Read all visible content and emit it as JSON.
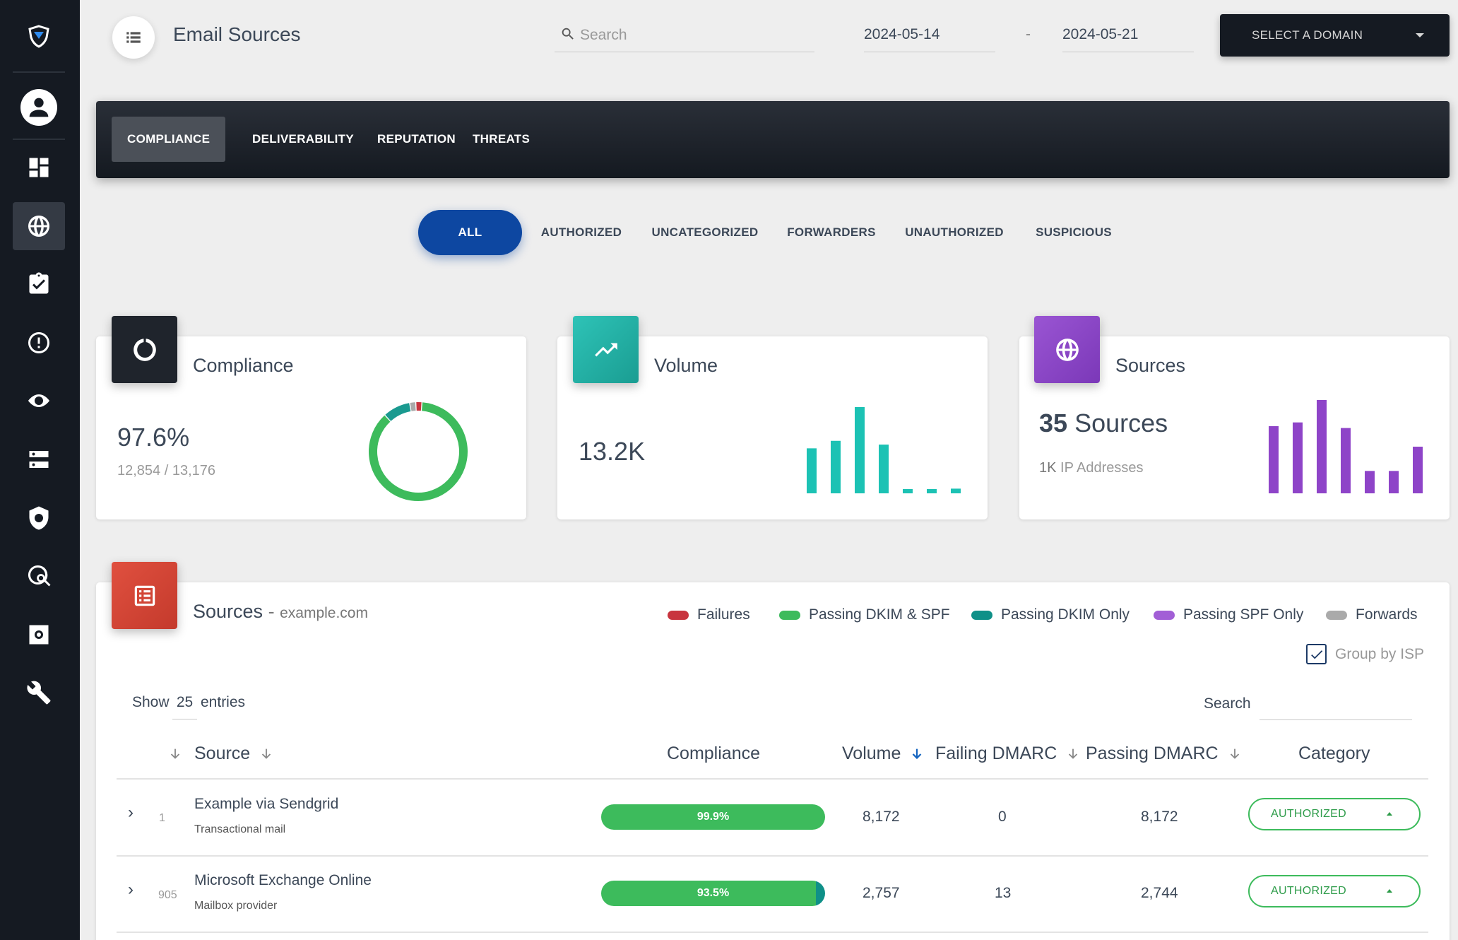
{
  "header": {
    "title": "Email Sources",
    "search_placeholder": "Search",
    "date_from": "2024-05-14",
    "date_sep": "-",
    "date_to": "2024-05-21",
    "domain_select": "SELECT A DOMAIN"
  },
  "tabs": [
    "COMPLIANCE",
    "DELIVERABILITY",
    "REPUTATION",
    "THREATS"
  ],
  "active_tab": "COMPLIANCE",
  "filters": [
    "ALL",
    "AUTHORIZED",
    "UNCATEGORIZED",
    "FORWARDERS",
    "UNAUTHORIZED",
    "SUSPICIOUS"
  ],
  "active_filter": "ALL",
  "sidebar": {
    "items": [
      "logo",
      "profile",
      "dashboard",
      "globe",
      "clipboard-check",
      "alert",
      "lock-eye",
      "servers",
      "shield-search",
      "globe-search",
      "settings",
      "wrench"
    ],
    "active": "globe"
  },
  "cards": {
    "compliance": {
      "title": "Compliance",
      "value": "97.6%",
      "sub": "12,854 / 13,176",
      "icon": "donut-icon",
      "color": "#1f242c"
    },
    "volume": {
      "title": "Volume",
      "value": "13.2K",
      "icon": "trending-up-icon",
      "color": "#26b3a8"
    },
    "sources": {
      "title": "Sources",
      "value_num": "35",
      "value_label": "Sources",
      "sub_num": "1K",
      "sub_label": "IP Addresses",
      "icon": "globe-icon",
      "color": "#8e44c8"
    }
  },
  "chart_data": [
    {
      "type": "pie",
      "labels": [
        "Passing DKIM & SPF",
        "Passing DKIM Only",
        "Forwards",
        "Failures"
      ],
      "values": [
        87,
        9,
        2,
        2
      ],
      "colors": [
        "#3dbb5c",
        "#1a9a90",
        "#aaaaaa",
        "#c8353f"
      ]
    },
    {
      "type": "bar",
      "categories": [
        "1",
        "2",
        "3",
        "4",
        "5",
        "6",
        "7"
      ],
      "values": [
        48,
        56,
        92,
        52,
        4,
        2,
        5
      ],
      "color": "#1cc2b4"
    },
    {
      "type": "bar",
      "categories": [
        "1",
        "2",
        "3",
        "4",
        "5",
        "6",
        "7"
      ],
      "values": [
        72,
        76,
        100,
        70,
        24,
        24,
        50
      ],
      "color": "#8e44c8"
    }
  ],
  "table": {
    "title": "Sources",
    "domain": "example.com",
    "legend": [
      {
        "label": "Failures",
        "color": "#c8353f"
      },
      {
        "label": "Passing DKIM & SPF",
        "color": "#3dbb5c"
      },
      {
        "label": "Passing DKIM Only",
        "color": "#0f9088"
      },
      {
        "label": "Passing SPF Only",
        "color": "#a25fd6"
      },
      {
        "label": "Forwards",
        "color": "#aaaaaa"
      }
    ],
    "group_by_isp": "Group by ISP",
    "group_by_isp_checked": true,
    "show_label": "Show",
    "page_size": "25",
    "entries_label": "entries",
    "search_label": "Search",
    "columns": [
      "Source",
      "Compliance",
      "Volume",
      "Failing DMARC",
      "Passing DMARC",
      "Category"
    ],
    "rows": [
      {
        "rank": "1",
        "name": "Example via Sendgrid",
        "type": "Transactional mail",
        "compliance": "99.9%",
        "compliance_ok": 99.9,
        "compliance_teal": 0,
        "volume": "8,172",
        "failing": "0",
        "passing": "8,172",
        "category": "AUTHORIZED"
      },
      {
        "rank": "905",
        "name": "Microsoft Exchange Online",
        "type": "Mailbox provider",
        "compliance": "93.5%",
        "compliance_ok": 93.5,
        "compliance_teal": 4,
        "volume": "2,757",
        "failing": "13",
        "passing": "2,744",
        "category": "AUTHORIZED"
      }
    ]
  }
}
